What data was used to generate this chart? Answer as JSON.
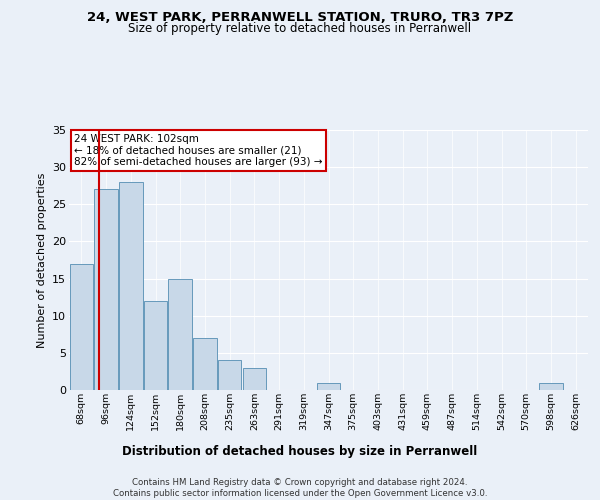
{
  "title1": "24, WEST PARK, PERRANWELL STATION, TRURO, TR3 7PZ",
  "title2": "Size of property relative to detached houses in Perranwell",
  "xlabel": "Distribution of detached houses by size in Perranwell",
  "ylabel": "Number of detached properties",
  "bin_labels": [
    "68sqm",
    "96sqm",
    "124sqm",
    "152sqm",
    "180sqm",
    "208sqm",
    "235sqm",
    "263sqm",
    "291sqm",
    "319sqm",
    "347sqm",
    "375sqm",
    "403sqm",
    "431sqm",
    "459sqm",
    "487sqm",
    "514sqm",
    "542sqm",
    "570sqm",
    "598sqm",
    "626sqm"
  ],
  "bar_values": [
    17,
    27,
    28,
    12,
    15,
    7,
    4,
    3,
    0,
    0,
    1,
    0,
    0,
    0,
    0,
    0,
    0,
    0,
    0,
    1,
    0
  ],
  "bar_color": "#c8d8e8",
  "bar_edge_color": "#6699bb",
  "subject_line_color": "#cc0000",
  "annotation_text": "24 WEST PARK: 102sqm\n← 18% of detached houses are smaller (21)\n82% of semi-detached houses are larger (93) →",
  "annotation_box_color": "#cc0000",
  "ylim": [
    0,
    35
  ],
  "yticks": [
    0,
    5,
    10,
    15,
    20,
    25,
    30,
    35
  ],
  "footer_line1": "Contains HM Land Registry data © Crown copyright and database right 2024.",
  "footer_line2": "Contains public sector information licensed under the Open Government Licence v3.0.",
  "bg_color": "#eaf0f8",
  "plot_bg_color": "#eaf0f8",
  "grid_color": "#ffffff"
}
